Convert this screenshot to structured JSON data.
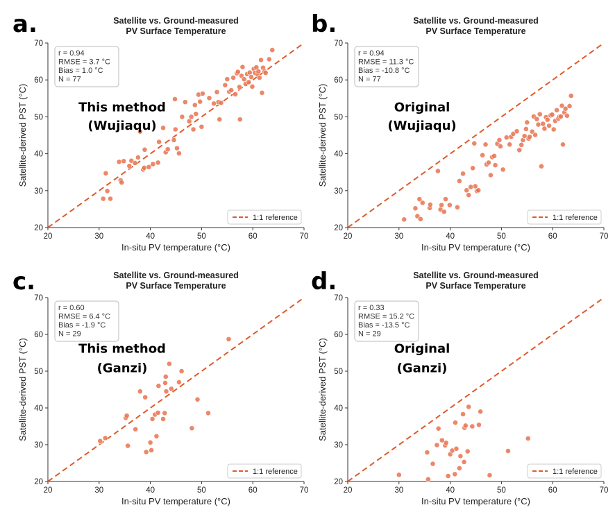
{
  "colors": {
    "point": "#E8734F",
    "reference": "#E05A2A",
    "axis": "#333333"
  },
  "chart_data": [
    {
      "panel": "a.",
      "type": "scatter",
      "title": "Satellite vs. Ground-measured",
      "subtitle": "PV Surface Temperature",
      "xlabel": "In-situ PV temperature (°C)",
      "ylabel": "Satellite-derived PST (°C)",
      "xlim": [
        20,
        70
      ],
      "ylim": [
        20,
        70
      ],
      "xticks": [
        20,
        30,
        40,
        50,
        60,
        70
      ],
      "yticks": [
        20,
        30,
        40,
        50,
        60,
        70
      ],
      "stats": [
        "r = 0.94",
        "RMSE = 3.7 °C",
        "Bias = 1.0 °C",
        "N = 77"
      ],
      "annotation": [
        "This method",
        "(Wujiaqu)"
      ],
      "legend": {
        "label": "1:1 reference",
        "position": "lower-right"
      },
      "grid": false,
      "points": [
        [
          30.8,
          27.8
        ],
        [
          31.3,
          34.7
        ],
        [
          31.6,
          29.9
        ],
        [
          32.2,
          27.8
        ],
        [
          33.9,
          37.8
        ],
        [
          34.2,
          32.8
        ],
        [
          34.4,
          32.2
        ],
        [
          34.8,
          38.0
        ],
        [
          35.9,
          36.7
        ],
        [
          36.3,
          38.1
        ],
        [
          37.0,
          37.5
        ],
        [
          37.6,
          39.0
        ],
        [
          38.0,
          46.0
        ],
        [
          38.6,
          35.7
        ],
        [
          38.8,
          36.2
        ],
        [
          38.9,
          41.1
        ],
        [
          39.7,
          36.4
        ],
        [
          40.5,
          37.2
        ],
        [
          41.5,
          37.6
        ],
        [
          41.7,
          43.2
        ],
        [
          42.5,
          47.0
        ],
        [
          43.0,
          40.4
        ],
        [
          43.4,
          41.2
        ],
        [
          44.6,
          43.7
        ],
        [
          44.8,
          54.8
        ],
        [
          44.9,
          46.6
        ],
        [
          45.2,
          41.5
        ],
        [
          45.6,
          40.1
        ],
        [
          46.2,
          50.0
        ],
        [
          46.8,
          54.0
        ],
        [
          47.6,
          48.8
        ],
        [
          48.0,
          50.0
        ],
        [
          48.4,
          46.6
        ],
        [
          48.7,
          53.2
        ],
        [
          48.9,
          50.8
        ],
        [
          49.4,
          56.0
        ],
        [
          49.7,
          54.1
        ],
        [
          50.0,
          47.3
        ],
        [
          50.2,
          56.3
        ],
        [
          51.5,
          55.1
        ],
        [
          52.4,
          53.6
        ],
        [
          53.0,
          56.7
        ],
        [
          53.3,
          54.0
        ],
        [
          53.5,
          49.3
        ],
        [
          53.8,
          53.8
        ],
        [
          54.6,
          58.6
        ],
        [
          55.0,
          60.2
        ],
        [
          55.4,
          56.8
        ],
        [
          55.8,
          57.2
        ],
        [
          56.2,
          60.6
        ],
        [
          56.6,
          56.1
        ],
        [
          56.9,
          61.8
        ],
        [
          57.1,
          62.2
        ],
        [
          57.4,
          58.1
        ],
        [
          57.5,
          49.3
        ],
        [
          57.8,
          61.1
        ],
        [
          58.0,
          63.5
        ],
        [
          58.3,
          60.2
        ],
        [
          58.6,
          58.9
        ],
        [
          58.9,
          61.6
        ],
        [
          59.2,
          59.4
        ],
        [
          59.4,
          62.0
        ],
        [
          59.7,
          60.8
        ],
        [
          59.9,
          58.2
        ],
        [
          60.2,
          63.0
        ],
        [
          60.4,
          61.9
        ],
        [
          60.7,
          63.4
        ],
        [
          60.9,
          61.5
        ],
        [
          61.1,
          62.3
        ],
        [
          61.3,
          60.6
        ],
        [
          61.6,
          65.4
        ],
        [
          61.8,
          56.5
        ],
        [
          62.0,
          63.3
        ],
        [
          62.3,
          62.3
        ],
        [
          62.5,
          61.9
        ],
        [
          63.2,
          65.6
        ],
        [
          63.8,
          68.1
        ]
      ]
    },
    {
      "panel": "b.",
      "type": "scatter",
      "title": "Satellite vs. Ground-measured",
      "subtitle": "PV Surface Temperature",
      "xlabel": "In-situ PV temperature (°C)",
      "ylabel": "Satellite-derived PST (°C)",
      "xlim": [
        20,
        70
      ],
      "ylim": [
        20,
        70
      ],
      "xticks": [
        20,
        30,
        40,
        50,
        60,
        70
      ],
      "yticks": [
        20,
        30,
        40,
        50,
        60,
        70
      ],
      "stats": [
        "r = 0.94",
        "RMSE = 11.3 °C",
        "Bias = -10.8 °C",
        "N = 77"
      ],
      "annotation": [
        "Original",
        "(Wujiaqu)"
      ],
      "legend": {
        "label": "1:1 reference",
        "position": "lower-right"
      },
      "grid": false,
      "points": [
        [
          31.0,
          22.2
        ],
        [
          33.2,
          25.2
        ],
        [
          33.6,
          23.1
        ],
        [
          34.0,
          27.7
        ],
        [
          34.2,
          22.3
        ],
        [
          34.6,
          26.7
        ],
        [
          36.0,
          25.3
        ],
        [
          36.1,
          26.2
        ],
        [
          37.6,
          35.3
        ],
        [
          38.1,
          24.9
        ],
        [
          38.3,
          26.1
        ],
        [
          38.8,
          24.3
        ],
        [
          39.1,
          27.7
        ],
        [
          39.9,
          26.1
        ],
        [
          41.4,
          25.5
        ],
        [
          41.8,
          32.6
        ],
        [
          42.5,
          34.6
        ],
        [
          43.2,
          30.1
        ],
        [
          43.6,
          28.8
        ],
        [
          44.0,
          31.0
        ],
        [
          44.4,
          36.1
        ],
        [
          44.7,
          42.8
        ],
        [
          44.9,
          31.2
        ],
        [
          45.2,
          29.9
        ],
        [
          45.5,
          30.1
        ],
        [
          46.3,
          39.6
        ],
        [
          46.9,
          42.5
        ],
        [
          47.1,
          37.1
        ],
        [
          47.5,
          37.6
        ],
        [
          47.9,
          34.2
        ],
        [
          48.2,
          39.1
        ],
        [
          48.6,
          39.4
        ],
        [
          48.8,
          36.9
        ],
        [
          49.2,
          42.7
        ],
        [
          49.6,
          43.7
        ],
        [
          49.8,
          42.0
        ],
        [
          50.3,
          35.7
        ],
        [
          51.0,
          44.4
        ],
        [
          51.6,
          42.5
        ],
        [
          51.9,
          44.6
        ],
        [
          52.3,
          45.4
        ],
        [
          53.0,
          46.1
        ],
        [
          53.5,
          41.0
        ],
        [
          53.9,
          42.4
        ],
        [
          54.2,
          43.7
        ],
        [
          54.5,
          44.8
        ],
        [
          54.8,
          46.7
        ],
        [
          55.0,
          48.5
        ],
        [
          55.3,
          44.1
        ],
        [
          55.5,
          44.6
        ],
        [
          56.0,
          46.0
        ],
        [
          56.3,
          50.1
        ],
        [
          56.6,
          45.1
        ],
        [
          56.9,
          49.4
        ],
        [
          57.2,
          47.9
        ],
        [
          57.5,
          50.7
        ],
        [
          57.8,
          36.6
        ],
        [
          58.1,
          48.1
        ],
        [
          58.4,
          46.8
        ],
        [
          58.7,
          49.9
        ],
        [
          59.0,
          49.2
        ],
        [
          59.3,
          47.6
        ],
        [
          59.6,
          50.4
        ],
        [
          59.9,
          50.6
        ],
        [
          60.2,
          46.6
        ],
        [
          60.5,
          48.9
        ],
        [
          60.8,
          51.8
        ],
        [
          61.1,
          49.5
        ],
        [
          61.3,
          50.0
        ],
        [
          61.6,
          50.1
        ],
        [
          61.8,
          53.0
        ],
        [
          62.0,
          42.5
        ],
        [
          62.3,
          51.2
        ],
        [
          62.5,
          52.2
        ],
        [
          62.8,
          50.3
        ],
        [
          63.3,
          52.9
        ],
        [
          63.6,
          55.7
        ]
      ]
    },
    {
      "panel": "c.",
      "type": "scatter",
      "title": "Satellite vs. Ground-measured",
      "subtitle": "PV Surface Temperature",
      "xlabel": "In-situ PV temperature (°C)",
      "ylabel": "Satellite-derived PST (°C)",
      "xlim": [
        20,
        70
      ],
      "ylim": [
        20,
        70
      ],
      "xticks": [
        20,
        30,
        40,
        50,
        60,
        70
      ],
      "yticks": [
        20,
        30,
        40,
        50,
        60,
        70
      ],
      "stats": [
        "r = 0.60",
        "RMSE = 6.4 °C",
        "Bias = -1.9 °C",
        "N = 29"
      ],
      "annotation": [
        "This method",
        "(Ganzi)"
      ],
      "legend": {
        "label": "1:1 reference",
        "position": "lower-right"
      },
      "grid": false,
      "points": [
        [
          30.2,
          31.0
        ],
        [
          31.2,
          31.8
        ],
        [
          35.2,
          37.3
        ],
        [
          35.4,
          37.9
        ],
        [
          35.6,
          29.7
        ],
        [
          37.1,
          34.2
        ],
        [
          38.0,
          44.5
        ],
        [
          39.0,
          42.9
        ],
        [
          39.2,
          28.0
        ],
        [
          40.0,
          30.6
        ],
        [
          40.2,
          28.5
        ],
        [
          40.4,
          37.0
        ],
        [
          40.9,
          38.2
        ],
        [
          41.2,
          32.3
        ],
        [
          41.5,
          38.7
        ],
        [
          41.6,
          46.0
        ],
        [
          42.5,
          37.0
        ],
        [
          42.8,
          38.6
        ],
        [
          42.9,
          46.8
        ],
        [
          43.0,
          48.5
        ],
        [
          43.1,
          44.5
        ],
        [
          43.7,
          52.0
        ],
        [
          44.1,
          45.2
        ],
        [
          45.6,
          47.0
        ],
        [
          46.1,
          50.0
        ],
        [
          48.1,
          34.5
        ],
        [
          49.2,
          42.3
        ],
        [
          51.3,
          38.6
        ],
        [
          55.3,
          58.7
        ]
      ]
    },
    {
      "panel": "d.",
      "type": "scatter",
      "title": "Satellite vs. Ground-measured",
      "subtitle": "PV Surface Temperature",
      "xlabel": "In-situ PV temperature (°C)",
      "ylabel": "Satellite-derived PST (°C)",
      "xlim": [
        20,
        70
      ],
      "ylim": [
        20,
        70
      ],
      "xticks": [
        20,
        30,
        40,
        50,
        60,
        70
      ],
      "yticks": [
        20,
        30,
        40,
        50,
        60,
        70
      ],
      "stats": [
        "r = 0.33",
        "RMSE = 15.2 °C",
        "Bias = -13.5 °C",
        "N = 29"
      ],
      "annotation": [
        "Original",
        "(Ganzi)"
      ],
      "legend": {
        "label": "1:1 reference",
        "position": "lower-right"
      },
      "grid": false,
      "points": [
        [
          30.0,
          21.8
        ],
        [
          35.5,
          27.9
        ],
        [
          35.7,
          20.6
        ],
        [
          36.6,
          24.8
        ],
        [
          37.7,
          34.4
        ],
        [
          39.0,
          29.8
        ],
        [
          39.6,
          21.5
        ],
        [
          40.0,
          27.4
        ],
        [
          40.4,
          28.4
        ],
        [
          40.9,
          22.0
        ],
        [
          41.0,
          36.0
        ],
        [
          41.2,
          28.9
        ],
        [
          42.0,
          26.9
        ],
        [
          42.5,
          38.3
        ],
        [
          42.7,
          25.3
        ],
        [
          42.8,
          34.6
        ],
        [
          43.0,
          35.2
        ],
        [
          43.6,
          40.3
        ],
        [
          44.3,
          35.0
        ],
        [
          45.6,
          35.4
        ],
        [
          45.9,
          39.0
        ],
        [
          47.7,
          21.7
        ],
        [
          51.3,
          28.3
        ],
        [
          55.2,
          31.7
        ],
        [
          37.4,
          29.9
        ],
        [
          39.2,
          30.5
        ],
        [
          43.4,
          28.2
        ],
        [
          41.8,
          23.6
        ],
        [
          38.4,
          31.2
        ]
      ]
    }
  ]
}
